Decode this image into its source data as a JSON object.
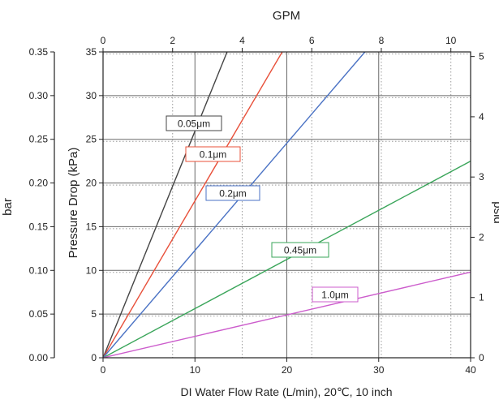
{
  "chart_data": {
    "type": "line",
    "xlabel": "DI Water Flow Rate (L/min), 20℃, 10 inch",
    "ylabel": "Pressure Drop (kPa)",
    "top_axis_label": "GPM",
    "left_outer_label": "bar",
    "right_axis_label": "psid",
    "xlim": [
      0,
      40
    ],
    "ylim": [
      0,
      35
    ],
    "top_lim": [
      0,
      10.567
    ],
    "left_outer_lim": [
      0,
      0.35
    ],
    "right_lim": [
      0,
      5.076
    ],
    "x_ticks": [
      "0",
      "10",
      "20",
      "30",
      "40"
    ],
    "y_ticks": [
      "0",
      "5",
      "10",
      "15",
      "20",
      "25",
      "30",
      "35"
    ],
    "top_ticks": [
      "0",
      "2",
      "4",
      "6",
      "8",
      "10"
    ],
    "left_outer_ticks": [
      "0.00",
      "0.05",
      "0.10",
      "0.15",
      "0.20",
      "0.25",
      "0.30",
      "0.35"
    ],
    "right_ticks": [
      "0",
      "1",
      "2",
      "3",
      "4",
      "5"
    ],
    "grid": true,
    "series": [
      {
        "name": "0.05μm",
        "color": "#444444",
        "x": [
          0,
          13.5
        ],
        "y": [
          0,
          35
        ]
      },
      {
        "name": "0.1μm",
        "color": "#e8503a",
        "x": [
          0,
          19.5
        ],
        "y": [
          0,
          35
        ]
      },
      {
        "name": "0.2μm",
        "color": "#4a72c4",
        "x": [
          0,
          28.5
        ],
        "y": [
          0,
          35
        ]
      },
      {
        "name": "0.45μm",
        "color": "#3aa55a",
        "x": [
          0,
          40
        ],
        "y": [
          0,
          22.5
        ]
      },
      {
        "name": "1.0μm",
        "color": "#cc5ccc",
        "x": [
          0,
          40
        ],
        "y": [
          0,
          9.8
        ]
      }
    ]
  }
}
